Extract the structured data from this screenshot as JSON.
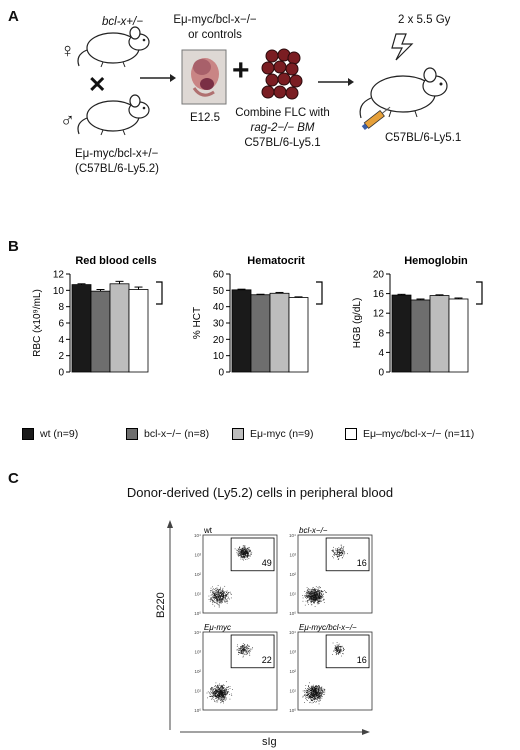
{
  "panel_a": {
    "letter": "A",
    "female_genotype": "bcl-x+/−",
    "male_genotype": "Eμ-myc/bcl-x+/−",
    "male_strain": "(C57BL/6-Ly5.2)",
    "embryo_label_1": "Eμ-myc/bcl-x−/−",
    "embryo_label_2": "or controls",
    "embryo_age": "E12.5",
    "combine_line1": "Combine FLC with",
    "combine_line2": "rag-2−/− BM",
    "combine_line3": "C57BL/6-Ly5.1",
    "irradiation": "2 x 5.5 Gy",
    "recipient_strain": "C57BL/6-Ly5.1",
    "female_symbol": "♀",
    "male_symbol": "♂",
    "cross_symbol": "✕",
    "plus_symbol": "+"
  },
  "panel_b": {
    "letter": "B",
    "legend": [
      {
        "label": "wt (n=9)",
        "color": "#1a1a1a"
      },
      {
        "label": "bcl-x−/− (n=8)",
        "color": "#6e6e6e"
      },
      {
        "label": "Eμ-myc (n=9)",
        "color": "#bdbdbd"
      },
      {
        "label": "Eμ–myc/bcl-x−/− (n=11)",
        "color": "#ffffff"
      }
    ]
  },
  "chart_data": [
    {
      "type": "bar",
      "title": "Red blood cells",
      "ylabel": "RBC (x10⁹/mL)",
      "ylim": [
        0,
        12
      ],
      "yticks": [
        "0",
        "2",
        "4",
        "6",
        "8",
        "10",
        "12"
      ],
      "categories": [
        "wt",
        "bcl-x−/−",
        "Eμ-myc",
        "Eμ–myc/bcl-x−/−"
      ],
      "values": [
        10.7,
        9.9,
        10.8,
        10.1
      ],
      "errors": [
        0.1,
        0.2,
        0.3,
        0.3
      ],
      "colors": [
        "#1a1a1a",
        "#6e6e6e",
        "#bdbdbd",
        "#ffffff"
      ]
    },
    {
      "type": "bar",
      "title": "Hematocrit",
      "ylabel": "% HCT",
      "ylim": [
        0,
        60
      ],
      "yticks": [
        "0",
        "10",
        "20",
        "30",
        "40",
        "50",
        "60"
      ],
      "categories": [
        "wt",
        "bcl-x−/−",
        "Eμ-myc",
        "Eμ–myc/bcl-x−/−"
      ],
      "values": [
        50.3,
        47.3,
        48.2,
        45.6
      ],
      "errors": [
        0.4,
        0.3,
        0.5,
        0.4
      ],
      "colors": [
        "#1a1a1a",
        "#6e6e6e",
        "#bdbdbd",
        "#ffffff"
      ]
    },
    {
      "type": "bar",
      "title": "Hemoglobin",
      "ylabel": "HGB (g/dL)",
      "ylim": [
        0,
        20
      ],
      "yticks": [
        "0",
        "4",
        "8",
        "12",
        "16",
        "20"
      ],
      "categories": [
        "wt",
        "bcl-x−/−",
        "Eμ-myc",
        "Eμ–myc/bcl-x−/−"
      ],
      "values": [
        15.7,
        14.7,
        15.6,
        14.9
      ],
      "errors": [
        0.15,
        0.2,
        0.15,
        0.2
      ],
      "colors": [
        "#1a1a1a",
        "#6e6e6e",
        "#bdbdbd",
        "#ffffff"
      ]
    }
  ],
  "panel_c": {
    "letter": "C",
    "title": "Donor-derived (Ly5.2) cells in peripheral blood",
    "y_axis": "B220",
    "x_axis": "sIg",
    "plots": [
      {
        "label": "wt",
        "gate_value": "49"
      },
      {
        "label": "bcl-x−/−",
        "gate_value": "16"
      },
      {
        "label": "Eμ-myc",
        "gate_value": "22"
      },
      {
        "label": "Eμ-myc/bcl-x−/−",
        "gate_value": "16"
      }
    ],
    "log_ticks": [
      "10⁰",
      "10¹",
      "10²",
      "10³",
      "10⁴"
    ]
  }
}
